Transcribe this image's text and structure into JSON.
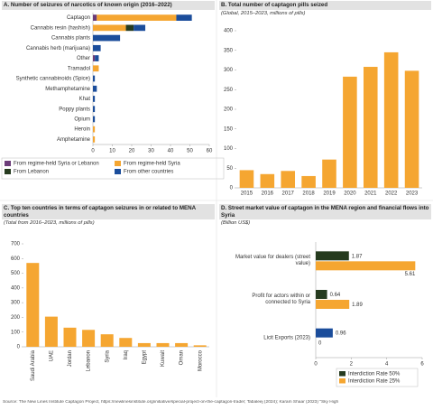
{
  "chart_data": [
    {
      "type": "bar",
      "orientation": "horizontal",
      "stacked": true,
      "title": "A. Number of seizures of narcotics of known origin (2016–2022)",
      "categories": [
        "Captagon",
        "Cannabis resin (hashish)",
        "Cannabis plants",
        "Cannabis herb (marijuana)",
        "Other",
        "Tramadol",
        "Synthetic cannabinoids (Spice)",
        "Methamphetamine",
        "Khat",
        "Poppy plants",
        "Opium",
        "Heroin",
        "Amphetamine"
      ],
      "series": [
        {
          "name": "From regime-held Syria or Lebanon",
          "color": "#6b3b78",
          "values": [
            2,
            0,
            0,
            0,
            1,
            0,
            0,
            0,
            0,
            0,
            0,
            0,
            0
          ]
        },
        {
          "name": "From regime-held Syria",
          "color": "#f5a631",
          "values": [
            41,
            17,
            0,
            0,
            0,
            3,
            0,
            0,
            0,
            0,
            0,
            1,
            1
          ]
        },
        {
          "name": "From Lebanon",
          "color": "#263b1f",
          "values": [
            0,
            4,
            0,
            0,
            0,
            0,
            0,
            0,
            0,
            0,
            0,
            0,
            0
          ]
        },
        {
          "name": "From other countries",
          "color": "#1b4d9b",
          "values": [
            8,
            6,
            14,
            4,
            2,
            0,
            1,
            2,
            1,
            1,
            1,
            0,
            0
          ]
        }
      ],
      "xlim": [
        0,
        60
      ],
      "xticks": [
        0,
        10,
        20,
        30,
        40,
        50,
        60
      ]
    },
    {
      "type": "bar",
      "orientation": "vertical",
      "title": "B. Total number of captagon pills seized",
      "subtitle": "(Global, 2015–2023, millions of pills)",
      "categories": [
        "2015",
        "2016",
        "2017",
        "2018",
        "2019",
        "2020",
        "2021",
        "2022",
        "2023"
      ],
      "values": [
        45,
        35,
        43,
        30,
        72,
        283,
        308,
        345,
        298
      ],
      "color": "#f5a631",
      "ylim": [
        0,
        400
      ],
      "yticks": [
        0,
        50,
        100,
        150,
        200,
        250,
        300,
        350,
        400
      ]
    },
    {
      "type": "bar",
      "orientation": "vertical",
      "title": "C. Top ten countries in terms of captagon seizures in or related to MENA countries",
      "subtitle": "(Total from 2016–2023, millions of pills)",
      "categories": [
        "Saudi Arabia",
        "UAE",
        "Jordan",
        "Lebanon",
        "Syria",
        "Iraq",
        "Egypt",
        "Kuwait",
        "Oman",
        "Morocco"
      ],
      "values": [
        570,
        205,
        130,
        115,
        85,
        60,
        25,
        25,
        25,
        10
      ],
      "color": "#f5a631",
      "ylim": [
        0,
        700
      ],
      "yticks": [
        0,
        100,
        200,
        300,
        400,
        500,
        600,
        700
      ]
    },
    {
      "type": "bar",
      "orientation": "horizontal",
      "stacked": false,
      "title": "D. Street market value of captagon in the MENA region and financial flows into Syria",
      "subtitle": "(Billion US$)",
      "categories": [
        "Market value for dealers (street value)",
        "Profit for actors within or connected to Syria",
        "Licit Exports (2023)"
      ],
      "series": [
        {
          "name": "Interdiction Rate 50%",
          "color": "#263b1f",
          "point_colors": [
            "#263b1f",
            "#263b1f",
            "#1b4d9b"
          ],
          "values": [
            1.87,
            0.64,
            0.96
          ]
        },
        {
          "name": "Interdiction Rate 25%",
          "color": "#f5a631",
          "values": [
            5.61,
            1.89,
            0
          ]
        }
      ],
      "xlim": [
        0,
        6
      ],
      "xticks": [
        0,
        2,
        4,
        6
      ],
      "data_labels": true
    }
  ],
  "source": "Source: The New Lines Institute Captagon Project, https://newlinesinstitute.org/initiative/special-project-on-the-captagon-trade/; Tabaleej (2024); Karam Shaar (2023) \"Sky High"
}
